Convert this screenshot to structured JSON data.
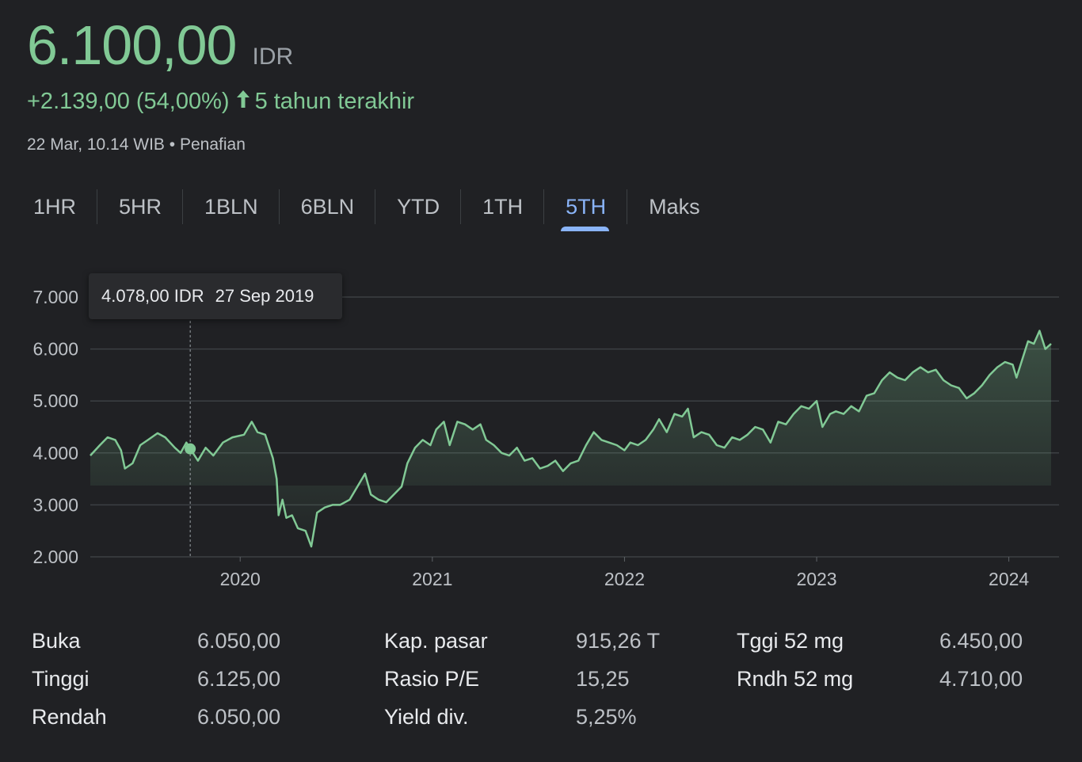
{
  "quote": {
    "price": "6.100,00",
    "currency": "IDR",
    "change": "+2.139,00 (54,00%)",
    "period_label": "5 tahun terakhir",
    "timestamp": "22 Mar, 10.14 WIB",
    "separator": "•",
    "disclaimer": "Penafian"
  },
  "colors": {
    "up": "#81c995",
    "accent": "#8ab4f8",
    "background": "#202124"
  },
  "tabs": [
    {
      "label": "1HR"
    },
    {
      "label": "5HR"
    },
    {
      "label": "1BLN"
    },
    {
      "label": "6BLN"
    },
    {
      "label": "YTD"
    },
    {
      "label": "1TH"
    },
    {
      "label": "5TH",
      "active": true
    },
    {
      "label": "Maks"
    }
  ],
  "tooltip": {
    "value": "4.078,00 IDR",
    "date": "27 Sep 2019"
  },
  "chart_data": {
    "type": "area",
    "ylim": [
      2000,
      7000
    ],
    "xlim": [
      2019.22,
      2024.22
    ],
    "yticks": [
      {
        "value": 2000,
        "label": "2.000"
      },
      {
        "value": 3000,
        "label": "3.000"
      },
      {
        "value": 4000,
        "label": "4.000"
      },
      {
        "value": 5000,
        "label": "5.000"
      },
      {
        "value": 6000,
        "label": "6.000"
      },
      {
        "value": 7000,
        "label": "7.000"
      }
    ],
    "xticks": [
      {
        "value": 2020.0,
        "label": "2020"
      },
      {
        "value": 2021.0,
        "label": "2021"
      },
      {
        "value": 2022.0,
        "label": "2022"
      },
      {
        "value": 2023.0,
        "label": "2023"
      },
      {
        "value": 2024.0,
        "label": "2024"
      }
    ],
    "grid": true,
    "hover": {
      "x": 2019.74,
      "y": 4078
    },
    "series": [
      {
        "values": [
          [
            2019.22,
            3950
          ],
          [
            2019.27,
            4150
          ],
          [
            2019.31,
            4300
          ],
          [
            2019.35,
            4250
          ],
          [
            2019.38,
            4050
          ],
          [
            2019.4,
            3700
          ],
          [
            2019.44,
            3800
          ],
          [
            2019.48,
            4150
          ],
          [
            2019.52,
            4250
          ],
          [
            2019.57,
            4380
          ],
          [
            2019.61,
            4300
          ],
          [
            2019.66,
            4100
          ],
          [
            2019.69,
            4000
          ],
          [
            2019.72,
            4200
          ],
          [
            2019.74,
            4080
          ],
          [
            2019.78,
            3850
          ],
          [
            2019.82,
            4100
          ],
          [
            2019.86,
            3950
          ],
          [
            2019.91,
            4200
          ],
          [
            2019.96,
            4300
          ],
          [
            2020.02,
            4350
          ],
          [
            2020.06,
            4600
          ],
          [
            2020.09,
            4400
          ],
          [
            2020.13,
            4350
          ],
          [
            2020.17,
            3900
          ],
          [
            2020.19,
            3500
          ],
          [
            2020.2,
            2800
          ],
          [
            2020.22,
            3100
          ],
          [
            2020.24,
            2750
          ],
          [
            2020.27,
            2800
          ],
          [
            2020.3,
            2550
          ],
          [
            2020.34,
            2500
          ],
          [
            2020.37,
            2200
          ],
          [
            2020.4,
            2850
          ],
          [
            2020.44,
            2950
          ],
          [
            2020.48,
            3000
          ],
          [
            2020.52,
            3000
          ],
          [
            2020.57,
            3100
          ],
          [
            2020.61,
            3350
          ],
          [
            2020.65,
            3600
          ],
          [
            2020.68,
            3200
          ],
          [
            2020.72,
            3100
          ],
          [
            2020.76,
            3050
          ],
          [
            2020.8,
            3200
          ],
          [
            2020.84,
            3350
          ],
          [
            2020.87,
            3800
          ],
          [
            2020.91,
            4100
          ],
          [
            2020.95,
            4250
          ],
          [
            2020.99,
            4150
          ],
          [
            2021.02,
            4450
          ],
          [
            2021.06,
            4600
          ],
          [
            2021.09,
            4150
          ],
          [
            2021.13,
            4600
          ],
          [
            2021.17,
            4550
          ],
          [
            2021.21,
            4450
          ],
          [
            2021.25,
            4550
          ],
          [
            2021.28,
            4250
          ],
          [
            2021.32,
            4150
          ],
          [
            2021.36,
            4000
          ],
          [
            2021.4,
            3950
          ],
          [
            2021.44,
            4100
          ],
          [
            2021.48,
            3850
          ],
          [
            2021.52,
            3900
          ],
          [
            2021.56,
            3700
          ],
          [
            2021.6,
            3750
          ],
          [
            2021.64,
            3850
          ],
          [
            2021.68,
            3650
          ],
          [
            2021.72,
            3800
          ],
          [
            2021.76,
            3850
          ],
          [
            2021.8,
            4150
          ],
          [
            2021.84,
            4400
          ],
          [
            2021.88,
            4250
          ],
          [
            2021.92,
            4200
          ],
          [
            2021.96,
            4150
          ],
          [
            2022.0,
            4050
          ],
          [
            2022.03,
            4200
          ],
          [
            2022.07,
            4150
          ],
          [
            2022.11,
            4250
          ],
          [
            2022.15,
            4450
          ],
          [
            2022.18,
            4650
          ],
          [
            2022.22,
            4400
          ],
          [
            2022.26,
            4750
          ],
          [
            2022.3,
            4700
          ],
          [
            2022.33,
            4850
          ],
          [
            2022.36,
            4300
          ],
          [
            2022.4,
            4400
          ],
          [
            2022.44,
            4350
          ],
          [
            2022.48,
            4150
          ],
          [
            2022.52,
            4100
          ],
          [
            2022.56,
            4300
          ],
          [
            2022.6,
            4250
          ],
          [
            2022.64,
            4350
          ],
          [
            2022.68,
            4500
          ],
          [
            2022.72,
            4450
          ],
          [
            2022.76,
            4200
          ],
          [
            2022.8,
            4600
          ],
          [
            2022.84,
            4550
          ],
          [
            2022.88,
            4750
          ],
          [
            2022.92,
            4900
          ],
          [
            2022.96,
            4850
          ],
          [
            2023.0,
            5000
          ],
          [
            2023.03,
            4500
          ],
          [
            2023.07,
            4750
          ],
          [
            2023.1,
            4800
          ],
          [
            2023.14,
            4750
          ],
          [
            2023.18,
            4900
          ],
          [
            2023.22,
            4800
          ],
          [
            2023.26,
            5100
          ],
          [
            2023.3,
            5150
          ],
          [
            2023.34,
            5400
          ],
          [
            2023.38,
            5550
          ],
          [
            2023.42,
            5450
          ],
          [
            2023.46,
            5400
          ],
          [
            2023.5,
            5550
          ],
          [
            2023.54,
            5650
          ],
          [
            2023.58,
            5550
          ],
          [
            2023.62,
            5600
          ],
          [
            2023.66,
            5400
          ],
          [
            2023.7,
            5300
          ],
          [
            2023.74,
            5250
          ],
          [
            2023.78,
            5050
          ],
          [
            2023.82,
            5150
          ],
          [
            2023.86,
            5300
          ],
          [
            2023.9,
            5500
          ],
          [
            2023.94,
            5650
          ],
          [
            2023.98,
            5750
          ],
          [
            2024.02,
            5700
          ],
          [
            2024.04,
            5450
          ],
          [
            2024.07,
            5800
          ],
          [
            2024.1,
            6150
          ],
          [
            2024.13,
            6100
          ],
          [
            2024.16,
            6350
          ],
          [
            2024.19,
            6000
          ],
          [
            2024.22,
            6100
          ]
        ]
      }
    ]
  },
  "stats": [
    [
      {
        "label": "Buka",
        "value": "6.050,00"
      },
      {
        "label": "Tinggi",
        "value": "6.125,00"
      },
      {
        "label": "Rendah",
        "value": "6.050,00"
      }
    ],
    [
      {
        "label": "Kap. pasar",
        "value": "915,26 T"
      },
      {
        "label": "Rasio P/E",
        "value": "15,25"
      },
      {
        "label": "Yield div.",
        "value": "5,25%"
      }
    ],
    [
      {
        "label": "Tggi 52 mg",
        "value": "6.450,00"
      },
      {
        "label": "Rndh 52 mg",
        "value": "4.710,00"
      }
    ]
  ]
}
